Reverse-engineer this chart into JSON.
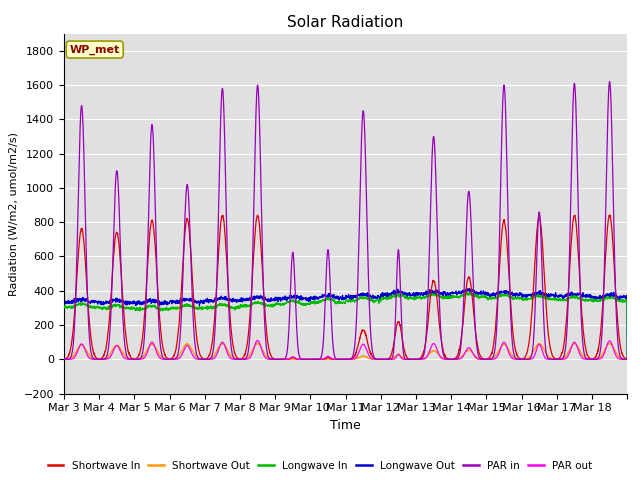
{
  "title": "Solar Radiation",
  "ylabel": "Radiation (W/m2, umol/m2/s)",
  "xlabel": "Time",
  "ylim": [
    -200,
    1900
  ],
  "yticks": [
    -200,
    0,
    200,
    400,
    600,
    800,
    1000,
    1200,
    1400,
    1600,
    1800
  ],
  "n_days": 16,
  "xtick_labels": [
    "Mar 3",
    "Mar 4",
    "Mar 5",
    "Mar 6",
    "Mar 7",
    "Mar 8",
    "Mar 9",
    "Mar 10",
    "Mar 11",
    "Mar 12",
    "Mar 13",
    "Mar 14",
    "Mar 15",
    "Mar 16",
    "Mar 17",
    "Mar 18"
  ],
  "station_label": "WP_met",
  "bg_color": "#e0e0e0",
  "fig_color": "#ffffff",
  "series": {
    "shortwave_in": {
      "color": "#dd0000",
      "label": "Shortwave In"
    },
    "shortwave_out": {
      "color": "#ff9900",
      "label": "Shortwave Out"
    },
    "longwave_in": {
      "color": "#00bb00",
      "label": "Longwave In"
    },
    "longwave_out": {
      "color": "#0000cc",
      "label": "Longwave Out"
    },
    "par_in": {
      "color": "#9900bb",
      "label": "PAR in"
    },
    "par_out": {
      "color": "#ff00ee",
      "label": "PAR out"
    }
  }
}
